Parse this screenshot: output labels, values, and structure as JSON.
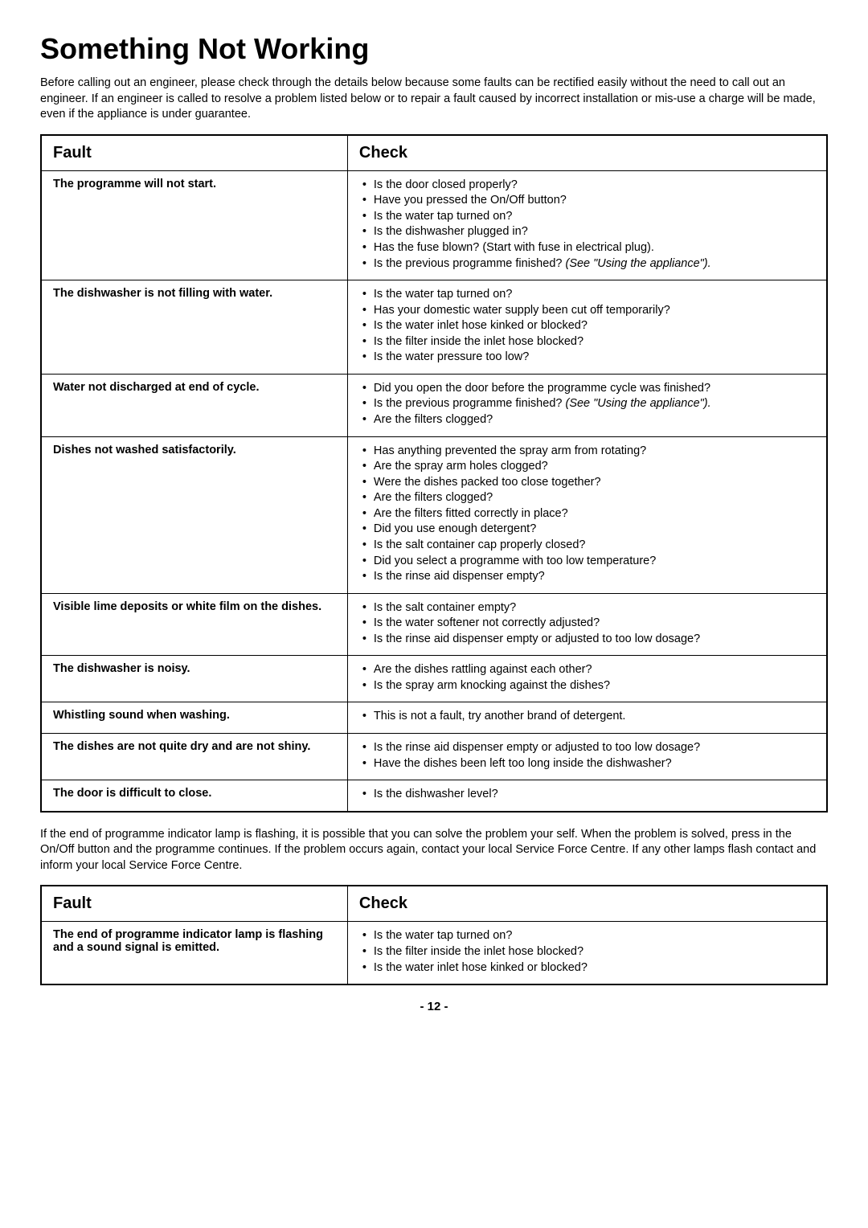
{
  "title": "Something Not Working",
  "intro": "Before calling out an engineer, please check through the details below because some faults can be rectified easily without the need to call out an engineer. If an engineer is called to resolve a problem listed below or to repair a fault caused by incorrect installation or mis-use a charge will be made, even if the appliance is under guarantee.",
  "table1": {
    "header_fault": "Fault",
    "header_check": "Check",
    "rows": [
      {
        "fault": "The programme will not start.",
        "checks": [
          {
            "text": "Is the door closed properly?"
          },
          {
            "text": "Have you pressed the On/Off button?"
          },
          {
            "text": "Is the water tap turned on?"
          },
          {
            "text": "Is the dishwasher plugged in?"
          },
          {
            "text": "Has the fuse blown? (Start with fuse in electrical plug)."
          },
          {
            "text": "Is the previous programme finished? ",
            "italic": "(See \"Using the appliance\")."
          }
        ]
      },
      {
        "fault": "The dishwasher is not filling with water.",
        "checks": [
          {
            "text": "Is the water tap turned on?"
          },
          {
            "text": "Has your domestic water supply been cut off temporarily?"
          },
          {
            "text": "Is the water inlet hose kinked or blocked?"
          },
          {
            "text": "Is the filter inside the inlet hose blocked?"
          },
          {
            "text": "Is the water pressure too low?"
          }
        ]
      },
      {
        "fault": "Water not discharged at end of cycle.",
        "checks": [
          {
            "text": "Did you open the door before the programme cycle was finished?"
          },
          {
            "text": "Is the previous programme finished? ",
            "italic": "(See \"Using the appliance\")."
          },
          {
            "text": "Are the filters clogged?"
          }
        ]
      },
      {
        "fault": "Dishes not washed satisfactorily.",
        "checks": [
          {
            "text": "Has anything prevented the spray arm from rotating?"
          },
          {
            "text": "Are the spray arm holes clogged?"
          },
          {
            "text": "Were the dishes packed too close together?"
          },
          {
            "text": "Are the filters clogged?"
          },
          {
            "text": "Are the filters fitted correctly in place?"
          },
          {
            "text": "Did you use enough detergent?"
          },
          {
            "text": "Is the salt container cap properly closed?"
          },
          {
            "text": "Did you select a programme with too low temperature?"
          },
          {
            "text": "Is the rinse aid dispenser empty?"
          }
        ]
      },
      {
        "fault": "Visible lime deposits or white film on the dishes.",
        "checks": [
          {
            "text": "Is the salt container empty?"
          },
          {
            "text": "Is the water softener not correctly adjusted?"
          },
          {
            "text": "Is the rinse aid dispenser empty or adjusted to too low dosage?"
          }
        ]
      },
      {
        "fault": "The dishwasher is noisy.",
        "checks": [
          {
            "text": "Are the dishes rattling against each other?"
          },
          {
            "text": "Is the spray arm knocking against the dishes?"
          }
        ]
      },
      {
        "fault": "Whistling sound when washing.",
        "checks": [
          {
            "text": "This is not a fault, try another brand of detergent."
          }
        ]
      },
      {
        "fault": "The dishes are not quite dry and are not shiny.",
        "checks": [
          {
            "text": "Is the rinse aid dispenser empty or adjusted to too low dosage?"
          },
          {
            "text": "Have the dishes been left too long inside the dishwasher?"
          }
        ]
      },
      {
        "fault": "The door is difficult to close.",
        "checks": [
          {
            "text": "Is the dishwasher level?"
          }
        ]
      }
    ]
  },
  "mid_para": "If the end of programme indicator lamp is flashing, it is possible that you can solve the problem your self. When the problem is solved, press in the On/Off button and the programme continues. If the problem occurs again, contact your local Service Force Centre. If any other lamps flash contact and inform your local Service Force Centre.",
  "table2": {
    "header_fault": "Fault",
    "header_check": "Check",
    "rows": [
      {
        "fault": "The end of programme indicator lamp is flashing and a sound signal is emitted.",
        "checks": [
          {
            "text": "Is the water tap turned on?"
          },
          {
            "text": "Is the filter inside the inlet hose blocked?"
          },
          {
            "text": "Is the water inlet hose kinked or blocked?"
          }
        ]
      }
    ]
  },
  "page_number": "- 12 -"
}
